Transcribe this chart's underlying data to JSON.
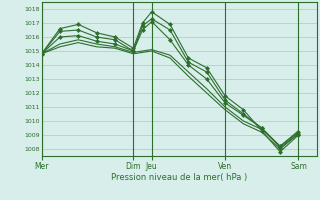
{
  "bg_color": "#d8eeeb",
  "plot_bg_color": "#d8eeeb",
  "grid_color": "#b0d8d0",
  "line_color": "#2d6e2d",
  "marker_color": "#2d6e2d",
  "ylabel_ticks": [
    1008,
    1009,
    1010,
    1011,
    1012,
    1013,
    1014,
    1015,
    1016,
    1017,
    1018
  ],
  "ylim": [
    1007.5,
    1018.5
  ],
  "xlabel": "Pression niveau de la mer( hPa )",
  "day_labels": [
    "Mer",
    "Dim",
    "Jeu",
    "Ven",
    "Sam"
  ],
  "day_positions": [
    0,
    60,
    72,
    120,
    168
  ],
  "xlim": [
    0,
    180
  ],
  "series": [
    {
      "x": [
        0,
        12,
        24,
        36,
        48,
        60,
        66,
        72,
        84,
        96,
        108,
        120,
        132,
        144,
        156,
        168
      ],
      "y": [
        1014.8,
        1016.6,
        1016.9,
        1016.3,
        1016.0,
        1015.2,
        1017.0,
        1017.8,
        1016.9,
        1014.5,
        1013.8,
        1011.8,
        1010.8,
        1009.3,
        1007.8,
        1009.0
      ],
      "has_markers": true
    },
    {
      "x": [
        0,
        12,
        24,
        36,
        48,
        60,
        66,
        72,
        84,
        96,
        108,
        120,
        132,
        144,
        156,
        168
      ],
      "y": [
        1014.8,
        1016.4,
        1016.5,
        1016.0,
        1015.8,
        1015.0,
        1016.8,
        1017.3,
        1016.5,
        1014.2,
        1013.5,
        1011.5,
        1010.5,
        1009.5,
        1008.2,
        1009.2
      ],
      "has_markers": true
    },
    {
      "x": [
        0,
        12,
        24,
        36,
        48,
        60,
        66,
        72,
        84,
        96,
        108,
        120,
        132,
        144,
        156,
        168
      ],
      "y": [
        1014.8,
        1016.0,
        1016.1,
        1015.7,
        1015.5,
        1015.0,
        1016.5,
        1017.1,
        1015.8,
        1014.0,
        1013.0,
        1011.3,
        1010.4,
        1009.5,
        1008.1,
        1009.1
      ],
      "has_markers": true
    },
    {
      "x": [
        0,
        12,
        24,
        36,
        48,
        60,
        72,
        84,
        96,
        108,
        120,
        132,
        144,
        156,
        168
      ],
      "y": [
        1014.8,
        1015.5,
        1015.8,
        1015.5,
        1015.3,
        1014.9,
        1015.1,
        1014.7,
        1013.5,
        1012.3,
        1011.0,
        1010.0,
        1009.4,
        1008.2,
        1009.3
      ],
      "has_markers": false
    },
    {
      "x": [
        0,
        12,
        24,
        36,
        48,
        60,
        72,
        84,
        96,
        108,
        120,
        132,
        144,
        156,
        168
      ],
      "y": [
        1014.8,
        1015.3,
        1015.6,
        1015.3,
        1015.2,
        1014.8,
        1015.0,
        1014.5,
        1013.2,
        1012.0,
        1010.8,
        1009.8,
        1009.2,
        1008.0,
        1009.1
      ],
      "has_markers": false
    }
  ]
}
